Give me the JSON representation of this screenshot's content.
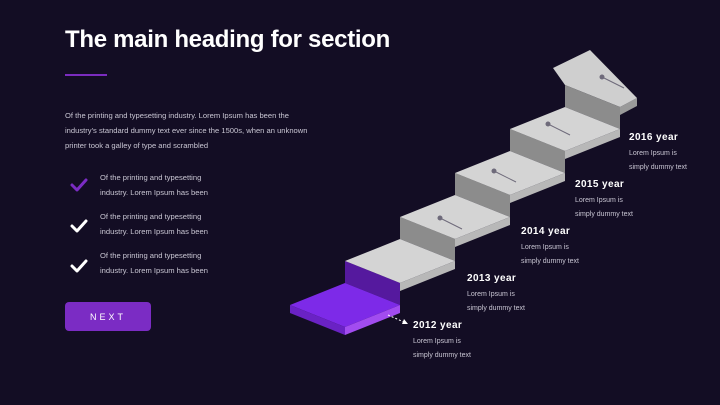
{
  "heading": "The main heading for section",
  "intro": "Of the printing and typesetting industry. Lorem Ipsum has been the industry's standard dummy text ever since the 1500s, when an unknown printer took a galley of type and scrambled",
  "checklist": [
    "Of the printing and typesetting industry. Lorem Ipsum has been",
    "Of the printing and typesetting industry. Lorem Ipsum has been",
    "Of the printing and typesetting industry. Lorem Ipsum has been"
  ],
  "button": "NEXT",
  "timeline": [
    {
      "year": "2012 year",
      "text": "Lorem Ipsum is simply dummy text"
    },
    {
      "year": "2013 year",
      "text": "Lorem Ipsum is simply dummy text"
    },
    {
      "year": "2014 year",
      "text": "Lorem Ipsum is simply dummy text"
    },
    {
      "year": "2015 year",
      "text": "Lorem Ipsum is simply dummy text"
    },
    {
      "year": "2016 year",
      "text": "Lorem Ipsum is simply dummy text"
    }
  ]
}
